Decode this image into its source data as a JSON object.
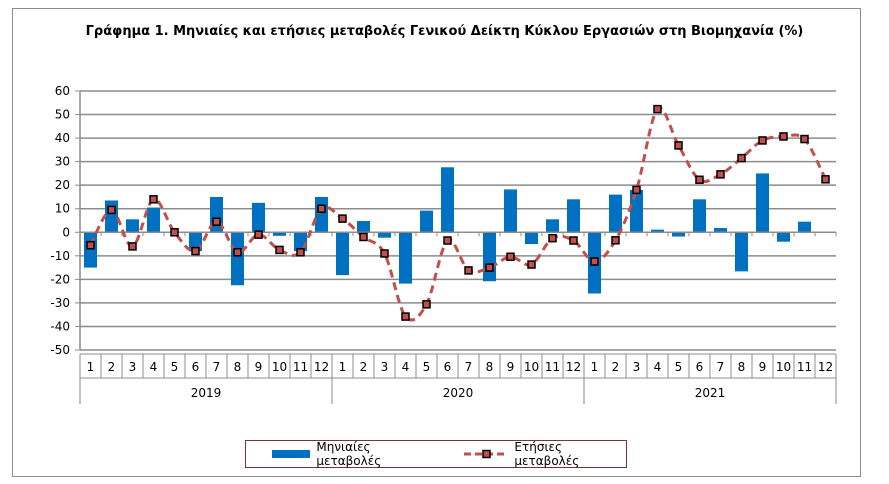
{
  "chart_data": {
    "type": "bar+line",
    "title": "Γράφημα 1. Μηνιαίες και ετήσιες μεταβολές  Γενικού Δείκτη Κύκλου Εργασιών στη Βιομηχανία (%)",
    "years": [
      "2019",
      "2020",
      "2021"
    ],
    "months": [
      "1",
      "2",
      "3",
      "4",
      "5",
      "6",
      "7",
      "8",
      "9",
      "10",
      "11",
      "12"
    ],
    "ylim": [
      -50,
      60
    ],
    "yticks": [
      60,
      50,
      40,
      30,
      20,
      10,
      0,
      -10,
      -20,
      -30,
      -40,
      -50
    ],
    "grid": true,
    "legend_position": "bottom",
    "series": [
      {
        "name": "Μηνιαίες μεταβολές",
        "type": "bar",
        "color": "#0070c0",
        "values": [
          -15,
          13.5,
          5.5,
          10.5,
          0,
          -8,
          15,
          -22.5,
          12.5,
          -1.5,
          -8,
          15,
          -18.2,
          4.8,
          -2.3,
          -21.8,
          9.2,
          27.6,
          0,
          -20.8,
          18.2,
          -5,
          5.5,
          14,
          -26,
          16,
          18,
          1.1,
          -1.8,
          14,
          1.8,
          -16.6,
          25,
          -4,
          4.5,
          0
        ]
      },
      {
        "name": "Ετήσιες μεταβολές",
        "type": "line",
        "color": "#c0504d",
        "values": [
          -5.5,
          9.5,
          -6,
          14,
          0,
          -8,
          4.5,
          -8.5,
          -1,
          -7.5,
          -8.5,
          10,
          5.8,
          -2,
          -9,
          -35.8,
          -30.6,
          -3.5,
          -16.2,
          -15,
          -10.4,
          -13.7,
          -2.5,
          -3.5,
          -12.4,
          -3.4,
          18,
          52.3,
          36.9,
          22.3,
          24.6,
          31.5,
          39,
          40.7,
          39.6,
          22.5
        ]
      }
    ]
  }
}
